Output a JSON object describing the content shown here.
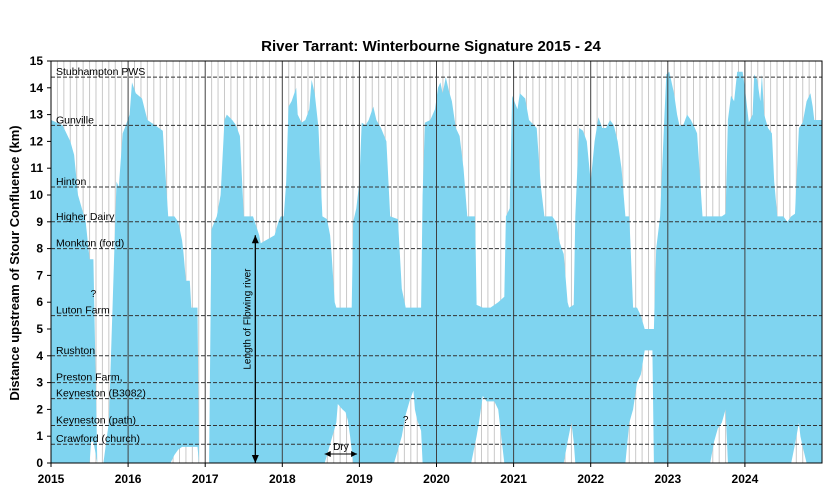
{
  "chart_data": {
    "type": "area",
    "title": "River Tarrant: Winterbourne Signature 2015 - 24",
    "ylabel": "Distance upstream of Stour Confluence (km)",
    "xlabel": "",
    "xlim": [
      2015,
      2025
    ],
    "ylim": [
      0,
      15
    ],
    "x_ticks": [
      2015,
      2016,
      2017,
      2018,
      2019,
      2020,
      2021,
      2022,
      2023,
      2024
    ],
    "y_ticks": [
      0,
      1,
      2,
      3,
      4,
      5,
      6,
      7,
      8,
      9,
      10,
      11,
      12,
      13,
      14,
      15
    ],
    "grid": {
      "x_minor": "monthly",
      "y": false
    },
    "fill_color": "#7fd4f0",
    "series": [
      {
        "top": [
          [
            2015.0,
            12.8
          ],
          [
            2015.15,
            12.6
          ],
          [
            2015.25,
            12.0
          ],
          [
            2015.3,
            11.5
          ],
          [
            2015.35,
            10.0
          ],
          [
            2015.45,
            9.0
          ],
          [
            2015.5,
            7.6
          ],
          [
            2015.55,
            7.6
          ],
          [
            2015.6,
            0
          ],
          [
            2015.68,
            0
          ],
          [
            2015.75,
            1.5
          ],
          [
            2015.8,
            6.0
          ],
          [
            2015.85,
            10.5
          ],
          [
            2015.88,
            10.3
          ],
          [
            2015.93,
            12.3
          ],
          [
            2015.97,
            12.6
          ],
          [
            2016.02,
            13.0
          ],
          [
            2016.05,
            14.2
          ],
          [
            2016.1,
            13.8
          ],
          [
            2016.18,
            13.6
          ],
          [
            2016.25,
            12.8
          ],
          [
            2016.35,
            12.6
          ],
          [
            2016.45,
            12.4
          ],
          [
            2016.48,
            11.0
          ],
          [
            2016.52,
            9.2
          ],
          [
            2016.6,
            9.2
          ],
          [
            2016.65,
            9.0
          ],
          [
            2016.7,
            8.3
          ],
          [
            2016.72,
            7.8
          ],
          [
            2016.75,
            6.8
          ],
          [
            2016.8,
            6.8
          ],
          [
            2016.82,
            5.8
          ],
          [
            2016.9,
            5.8
          ],
          [
            2016.92,
            0
          ],
          [
            2017.05,
            0
          ],
          [
            2017.08,
            8.7
          ],
          [
            2017.12,
            9.0
          ],
          [
            2017.15,
            9.2
          ],
          [
            2017.2,
            10.0
          ],
          [
            2017.25,
            12.8
          ],
          [
            2017.28,
            13.0
          ],
          [
            2017.35,
            12.8
          ],
          [
            2017.4,
            12.6
          ],
          [
            2017.45,
            12.2
          ],
          [
            2017.5,
            9.2
          ],
          [
            2017.62,
            9.2
          ],
          [
            2017.7,
            8.5
          ],
          [
            2017.72,
            8.2
          ],
          [
            2017.9,
            8.5
          ],
          [
            2017.95,
            9.0
          ],
          [
            2017.98,
            9.2
          ],
          [
            2018.02,
            9.2
          ],
          [
            2018.05,
            10.5
          ],
          [
            2018.08,
            13.3
          ],
          [
            2018.12,
            13.5
          ],
          [
            2018.18,
            14.0
          ],
          [
            2018.2,
            13.0
          ],
          [
            2018.25,
            12.7
          ],
          [
            2018.3,
            12.8
          ],
          [
            2018.35,
            13.2
          ],
          [
            2018.38,
            14.3
          ],
          [
            2018.42,
            13.8
          ],
          [
            2018.47,
            12.5
          ],
          [
            2018.5,
            10.5
          ],
          [
            2018.52,
            9.2
          ],
          [
            2018.58,
            9.1
          ],
          [
            2018.62,
            8.5
          ],
          [
            2018.64,
            7.8
          ],
          [
            2018.68,
            6.0
          ],
          [
            2018.7,
            5.8
          ],
          [
            2018.85,
            5.8
          ],
          [
            2018.9,
            5.8
          ],
          [
            2018.92,
            9.0
          ],
          [
            2018.96,
            9.5
          ],
          [
            2019.0,
            10.5
          ],
          [
            2019.03,
            12.7
          ],
          [
            2019.08,
            12.6
          ],
          [
            2019.12,
            12.8
          ],
          [
            2019.18,
            13.3
          ],
          [
            2019.22,
            12.8
          ],
          [
            2019.28,
            12.5
          ],
          [
            2019.35,
            12.0
          ],
          [
            2019.4,
            9.2
          ],
          [
            2019.5,
            9.1
          ],
          [
            2019.55,
            6.5
          ],
          [
            2019.6,
            5.8
          ],
          [
            2019.75,
            5.8
          ],
          [
            2019.8,
            5.8
          ],
          [
            2019.82,
            10.0
          ],
          [
            2019.85,
            12.7
          ],
          [
            2019.92,
            12.8
          ],
          [
            2019.98,
            13.2
          ],
          [
            2020.02,
            14.0
          ],
          [
            2020.05,
            14.2
          ],
          [
            2020.08,
            13.8
          ],
          [
            2020.12,
            14.4
          ],
          [
            2020.16,
            13.9
          ],
          [
            2020.2,
            13.5
          ],
          [
            2020.25,
            12.5
          ],
          [
            2020.3,
            12.2
          ],
          [
            2020.35,
            11.0
          ],
          [
            2020.4,
            9.2
          ],
          [
            2020.5,
            9.2
          ],
          [
            2020.52,
            5.9
          ],
          [
            2020.6,
            5.8
          ],
          [
            2020.7,
            5.8
          ],
          [
            2020.8,
            6.0
          ],
          [
            2020.88,
            6.2
          ],
          [
            2020.9,
            9.2
          ],
          [
            2020.95,
            9.5
          ],
          [
            2020.98,
            13.7
          ],
          [
            2021.05,
            13.2
          ],
          [
            2021.08,
            13.8
          ],
          [
            2021.15,
            13.6
          ],
          [
            2021.2,
            12.8
          ],
          [
            2021.3,
            12.5
          ],
          [
            2021.35,
            10.4
          ],
          [
            2021.4,
            9.2
          ],
          [
            2021.5,
            9.2
          ],
          [
            2021.55,
            9.0
          ],
          [
            2021.6,
            8.2
          ],
          [
            2021.65,
            7.8
          ],
          [
            2021.7,
            6.0
          ],
          [
            2021.72,
            5.8
          ],
          [
            2021.78,
            5.9
          ],
          [
            2021.8,
            9.2
          ],
          [
            2021.85,
            12.5
          ],
          [
            2021.9,
            12.4
          ],
          [
            2021.95,
            12.0
          ],
          [
            2022.0,
            10.5
          ],
          [
            2022.05,
            12.0
          ],
          [
            2022.1,
            12.9
          ],
          [
            2022.15,
            12.5
          ],
          [
            2022.2,
            12.5
          ],
          [
            2022.25,
            12.8
          ],
          [
            2022.3,
            12.6
          ],
          [
            2022.35,
            12.0
          ],
          [
            2022.4,
            11.0
          ],
          [
            2022.45,
            9.2
          ],
          [
            2022.5,
            9.2
          ],
          [
            2022.55,
            5.8
          ],
          [
            2022.6,
            5.8
          ],
          [
            2022.65,
            5.5
          ],
          [
            2022.7,
            5.0
          ],
          [
            2022.75,
            5.0
          ],
          [
            2022.8,
            5.0
          ],
          [
            2022.82,
            5.0
          ],
          [
            2022.85,
            8.0
          ],
          [
            2022.9,
            9.2
          ],
          [
            2022.95,
            12.5
          ],
          [
            2022.98,
            14.5
          ],
          [
            2023.02,
            14.6
          ],
          [
            2023.08,
            13.8
          ],
          [
            2023.12,
            13.0
          ],
          [
            2023.15,
            12.6
          ],
          [
            2023.2,
            12.6
          ],
          [
            2023.25,
            13.0
          ],
          [
            2023.3,
            12.8
          ],
          [
            2023.35,
            12.5
          ],
          [
            2023.38,
            12.3
          ],
          [
            2023.45,
            9.2
          ],
          [
            2023.52,
            9.2
          ],
          [
            2023.6,
            9.2
          ],
          [
            2023.7,
            9.2
          ],
          [
            2023.75,
            9.3
          ],
          [
            2023.78,
            12.8
          ],
          [
            2023.82,
            13.7
          ],
          [
            2023.86,
            13.5
          ],
          [
            2023.9,
            14.6
          ],
          [
            2023.97,
            14.6
          ],
          [
            2024.0,
            14.0
          ],
          [
            2024.05,
            12.7
          ],
          [
            2024.1,
            13.0
          ],
          [
            2024.12,
            14.5
          ],
          [
            2024.16,
            14.3
          ],
          [
            2024.2,
            13.5
          ],
          [
            2024.22,
            14.5
          ],
          [
            2024.25,
            13.0
          ],
          [
            2024.3,
            12.5
          ],
          [
            2024.35,
            12.3
          ],
          [
            2024.38,
            10.5
          ],
          [
            2024.42,
            9.2
          ],
          [
            2024.5,
            9.2
          ],
          [
            2024.55,
            9.0
          ],
          [
            2024.6,
            9.2
          ],
          [
            2024.65,
            9.3
          ],
          [
            2024.7,
            12.5
          ],
          [
            2024.75,
            12.7
          ],
          [
            2024.8,
            13.5
          ],
          [
            2024.85,
            13.8
          ],
          [
            2024.88,
            13.3
          ],
          [
            2024.9,
            12.8
          ],
          [
            2025.0,
            12.8
          ]
        ],
        "bottom": [
          [
            2015.0,
            0
          ],
          [
            2015.5,
            0
          ],
          [
            2015.52,
            0.8
          ],
          [
            2015.55,
            0.8
          ],
          [
            2015.6,
            0
          ],
          [
            2016.55,
            0
          ],
          [
            2016.6,
            0.3
          ],
          [
            2016.65,
            0.5
          ],
          [
            2016.7,
            0.6
          ],
          [
            2016.9,
            0.6
          ],
          [
            2016.92,
            0
          ],
          [
            2018.55,
            0
          ],
          [
            2018.6,
            0.5
          ],
          [
            2018.65,
            1.0
          ],
          [
            2018.7,
            1.5
          ],
          [
            2018.72,
            2.2
          ],
          [
            2018.78,
            2.0
          ],
          [
            2018.82,
            1.9
          ],
          [
            2018.85,
            1.6
          ],
          [
            2018.88,
            1.0
          ],
          [
            2018.92,
            0
          ],
          [
            2019.45,
            0
          ],
          [
            2019.55,
            1.0
          ],
          [
            2019.6,
            1.8
          ],
          [
            2019.65,
            2.3
          ],
          [
            2019.7,
            2.7
          ],
          [
            2019.72,
            2.0
          ],
          [
            2019.75,
            1.6
          ],
          [
            2019.8,
            1.2
          ],
          [
            2019.82,
            0
          ],
          [
            2020.45,
            0
          ],
          [
            2020.52,
            1.0
          ],
          [
            2020.55,
            1.5
          ],
          [
            2020.6,
            2.5
          ],
          [
            2020.65,
            2.3
          ],
          [
            2020.75,
            2.3
          ],
          [
            2020.8,
            2.0
          ],
          [
            2020.88,
            0
          ],
          [
            2021.65,
            0
          ],
          [
            2021.7,
            0.8
          ],
          [
            2021.75,
            1.5
          ],
          [
            2021.78,
            0.8
          ],
          [
            2021.8,
            0
          ],
          [
            2022.45,
            0
          ],
          [
            2022.5,
            1.5
          ],
          [
            2022.55,
            2.0
          ],
          [
            2022.6,
            3.0
          ],
          [
            2022.65,
            3.3
          ],
          [
            2022.7,
            4.2
          ],
          [
            2022.8,
            4.2
          ],
          [
            2022.82,
            0
          ],
          [
            2023.55,
            0
          ],
          [
            2023.6,
            0.8
          ],
          [
            2023.65,
            1.3
          ],
          [
            2023.7,
            1.5
          ],
          [
            2023.75,
            2.0
          ],
          [
            2023.78,
            0
          ],
          [
            2024.6,
            0
          ],
          [
            2024.65,
            0.7
          ],
          [
            2024.7,
            1.5
          ],
          [
            2024.72,
            1.0
          ],
          [
            2024.75,
            0.6
          ],
          [
            2024.8,
            0
          ],
          [
            2025.0,
            0
          ]
        ]
      }
    ],
    "places": [
      {
        "label": "Stubhampton PWS",
        "y": 14.4
      },
      {
        "label": "Gunville",
        "y": 12.6
      },
      {
        "label": "Hinton",
        "y": 10.3
      },
      {
        "label": "Higher Dairy",
        "y": 9.0
      },
      {
        "label": "Monkton (ford)",
        "y": 8.0
      },
      {
        "label": "Luton Farm",
        "y": 5.5
      },
      {
        "label": "Rushton",
        "y": 4.0
      },
      {
        "label": "Preston Farm,",
        "y": 3.0
      },
      {
        "label": "Keyneston (B3082)",
        "y": 2.4
      },
      {
        "label": "Keyneston  (path)",
        "y": 1.4
      },
      {
        "label": "Crawford (church)",
        "y": 0.7
      }
    ],
    "annotations": {
      "flowing": {
        "text": "Length of Flowing river",
        "x": 2017.65,
        "y_from": 0,
        "y_to": 8.5
      },
      "dry": {
        "text": "Dry",
        "x_from": 2018.55,
        "x_to": 2018.97,
        "y": 0.3
      },
      "question_marks": [
        {
          "text": "?",
          "x": 2015.55,
          "y": 6.2
        },
        {
          "text": "?",
          "x": 2019.6,
          "y": 1.5
        }
      ]
    }
  }
}
